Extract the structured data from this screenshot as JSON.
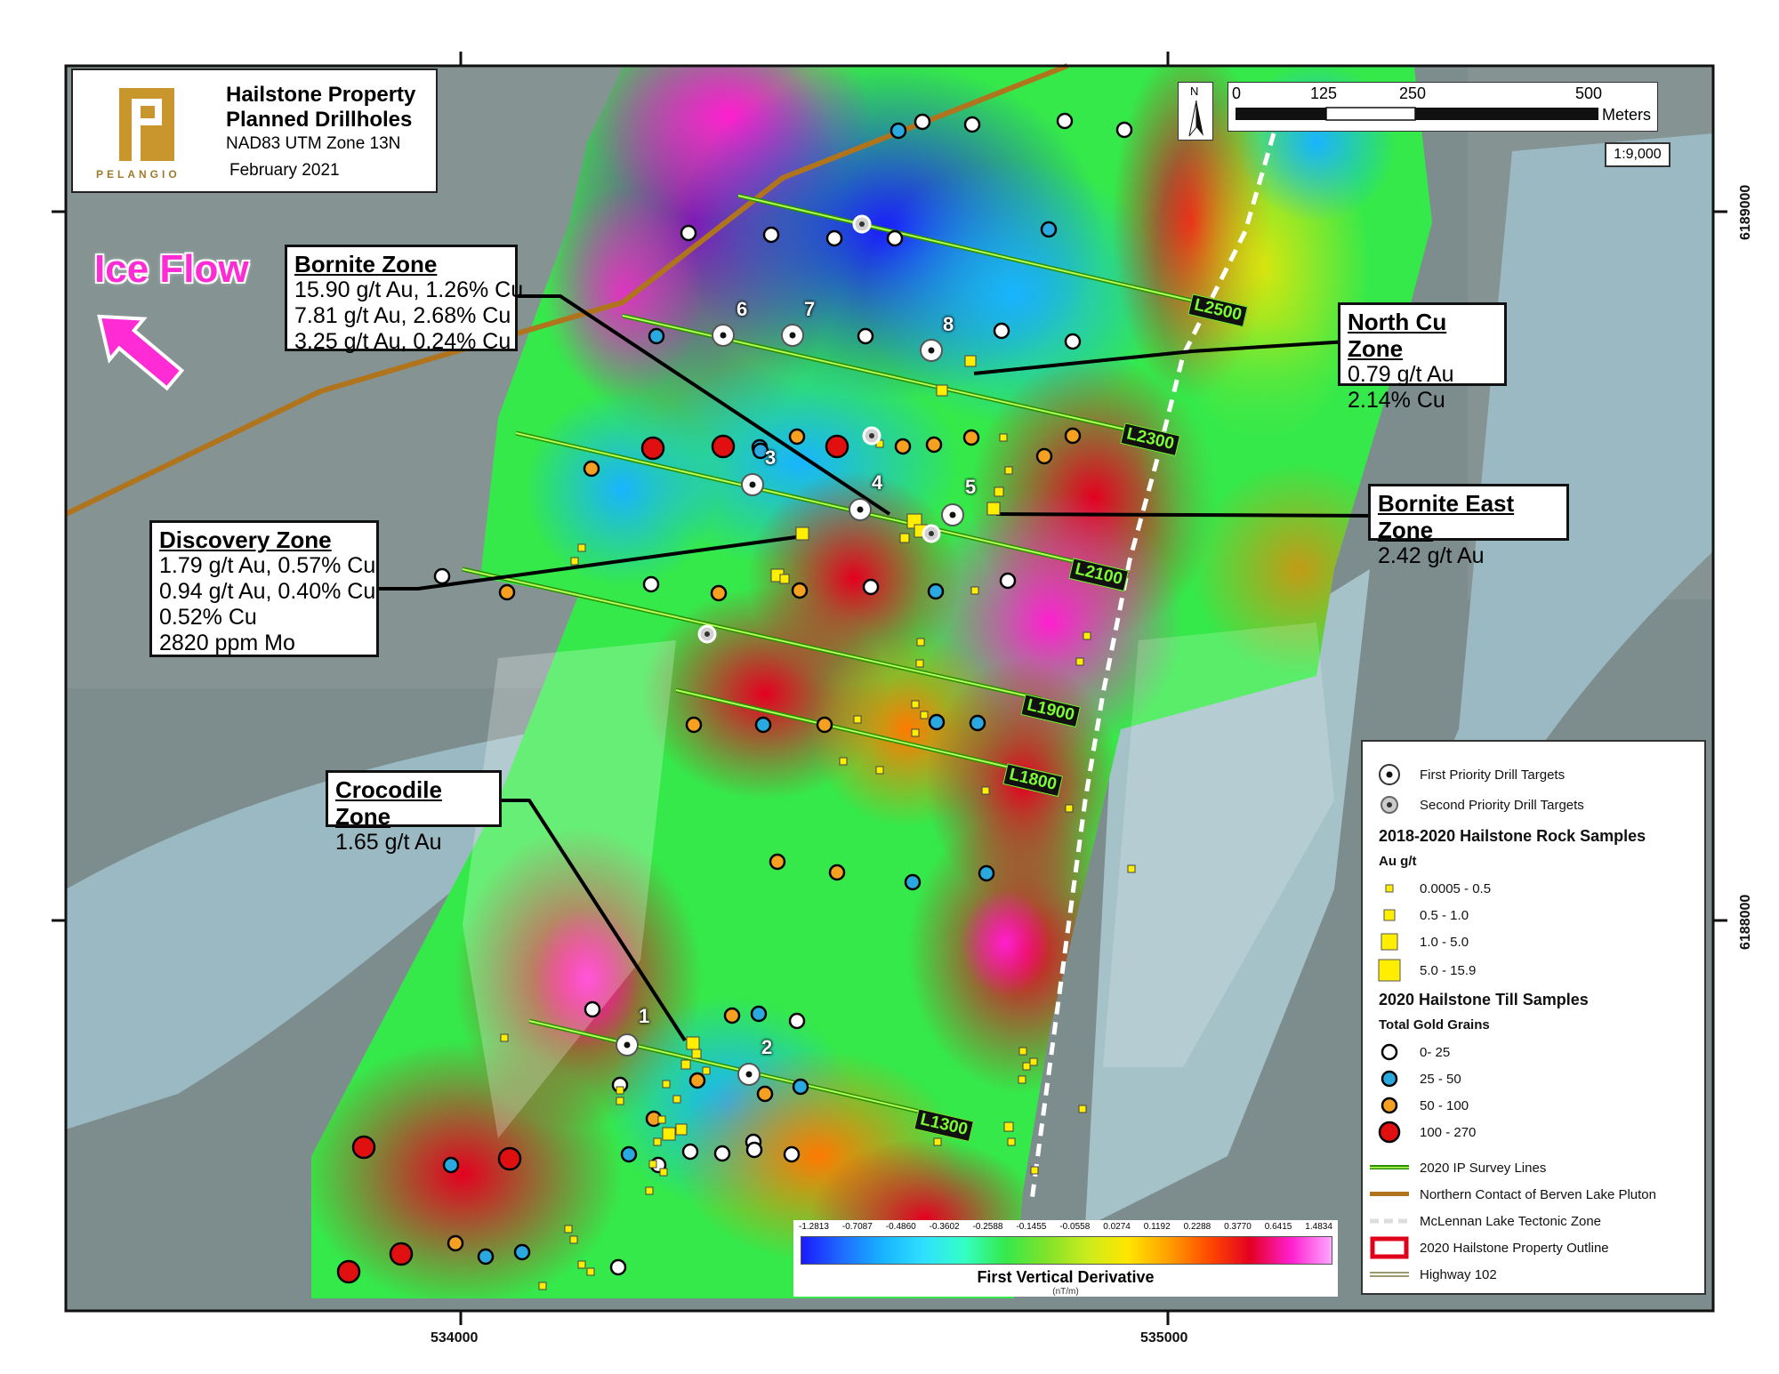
{
  "title": {
    "line1": "Hailstone Property",
    "line2": "Planned Drillholes",
    "datum": "NAD83 UTM Zone 13N",
    "date": "February 2021",
    "logo_text": "PELANGIO"
  },
  "ice_flow": "Ice Flow",
  "scale": {
    "ticks": [
      "0",
      "125",
      "250",
      "500"
    ],
    "unit": "Meters",
    "ratio": "1:9,000",
    "north": "N"
  },
  "axes": {
    "x_ticks": [
      "534000",
      "535000"
    ],
    "y_ticks": [
      "6189000",
      "6188000"
    ]
  },
  "zones": [
    {
      "id": "bornite",
      "title": "Bornite Zone",
      "lines": [
        "15.90 g/t Au, 1.26% Cu",
        "7.81 g/t Au, 2.68% Cu",
        "3.25 g/t Au, 0.24% Cu"
      ]
    },
    {
      "id": "northcu",
      "title": "North Cu Zone",
      "lines": [
        "0.79 g/t Au",
        "2.14% Cu"
      ]
    },
    {
      "id": "borniteeast",
      "title": "Bornite East Zone",
      "lines": [
        "2.42 g/t Au"
      ]
    },
    {
      "id": "discovery",
      "title": "Discovery Zone",
      "lines": [
        "1.79 g/t Au, 0.57% Cu",
        "0.94 g/t Au, 0.40% Cu",
        "0.52% Cu",
        "2820 ppm Mo"
      ]
    },
    {
      "id": "crocodile",
      "title": "Crocodile Zone",
      "lines": [
        "1.65 g/t Au"
      ]
    }
  ],
  "survey_lines": [
    "L2500",
    "L2300",
    "L2100",
    "L1900",
    "L1800",
    "L1300"
  ],
  "targets": [
    "1",
    "2",
    "3",
    "4",
    "5",
    "6",
    "7",
    "8"
  ],
  "colorbar": {
    "ticks": [
      "-1.2813",
      "-0.7087",
      "-0.4860",
      "-0.3602",
      "-0.2588",
      "-0.1455",
      "-0.0558",
      "0.0274",
      "0.1192",
      "0.2288",
      "0.3770",
      "0.6415",
      "1.4834"
    ],
    "title": "First Vertical Derivative",
    "unit": "(nT/m)",
    "colors": [
      "#1a1aff",
      "#1e6cff",
      "#18b4ff",
      "#2fe0ff",
      "#33ffc4",
      "#35e94a",
      "#7fe22a",
      "#c9ec1c",
      "#ffe600",
      "#ffa000",
      "#ff4a00",
      "#e40020",
      "#ff1fd0",
      "#ffa6ff"
    ]
  },
  "legend": {
    "items": [
      {
        "label": "First Priority Drill Targets"
      },
      {
        "label": "Second Priority Drill Targets"
      }
    ],
    "rock_title": "2018-2020 Hailstone Rock Samples",
    "rock_unit": "Au g/t",
    "rock_classes": [
      "0.0005 - 0.5",
      "0.5 - 1.0",
      "1.0 - 5.0",
      "5.0 - 15.9"
    ],
    "till_title": "2020 Hailstone Till Samples",
    "till_unit": "Total Gold Grains",
    "till_classes": [
      {
        "label": "0- 25",
        "color": "#ffffff"
      },
      {
        "label": "25 - 50",
        "color": "#2aa8e0"
      },
      {
        "label": "50 - 100",
        "color": "#f5a020"
      },
      {
        "label": "100 - 270",
        "color": "#e01010"
      }
    ],
    "lines": [
      {
        "label": "2020 IP Survey Lines"
      },
      {
        "label": "Northern Contact of Berven Lake Pluton"
      },
      {
        "label": "McLennan Lake Tectonic Zone"
      },
      {
        "label": "2020 Hailstone Property Outline"
      },
      {
        "label": "Highway 102"
      }
    ]
  }
}
